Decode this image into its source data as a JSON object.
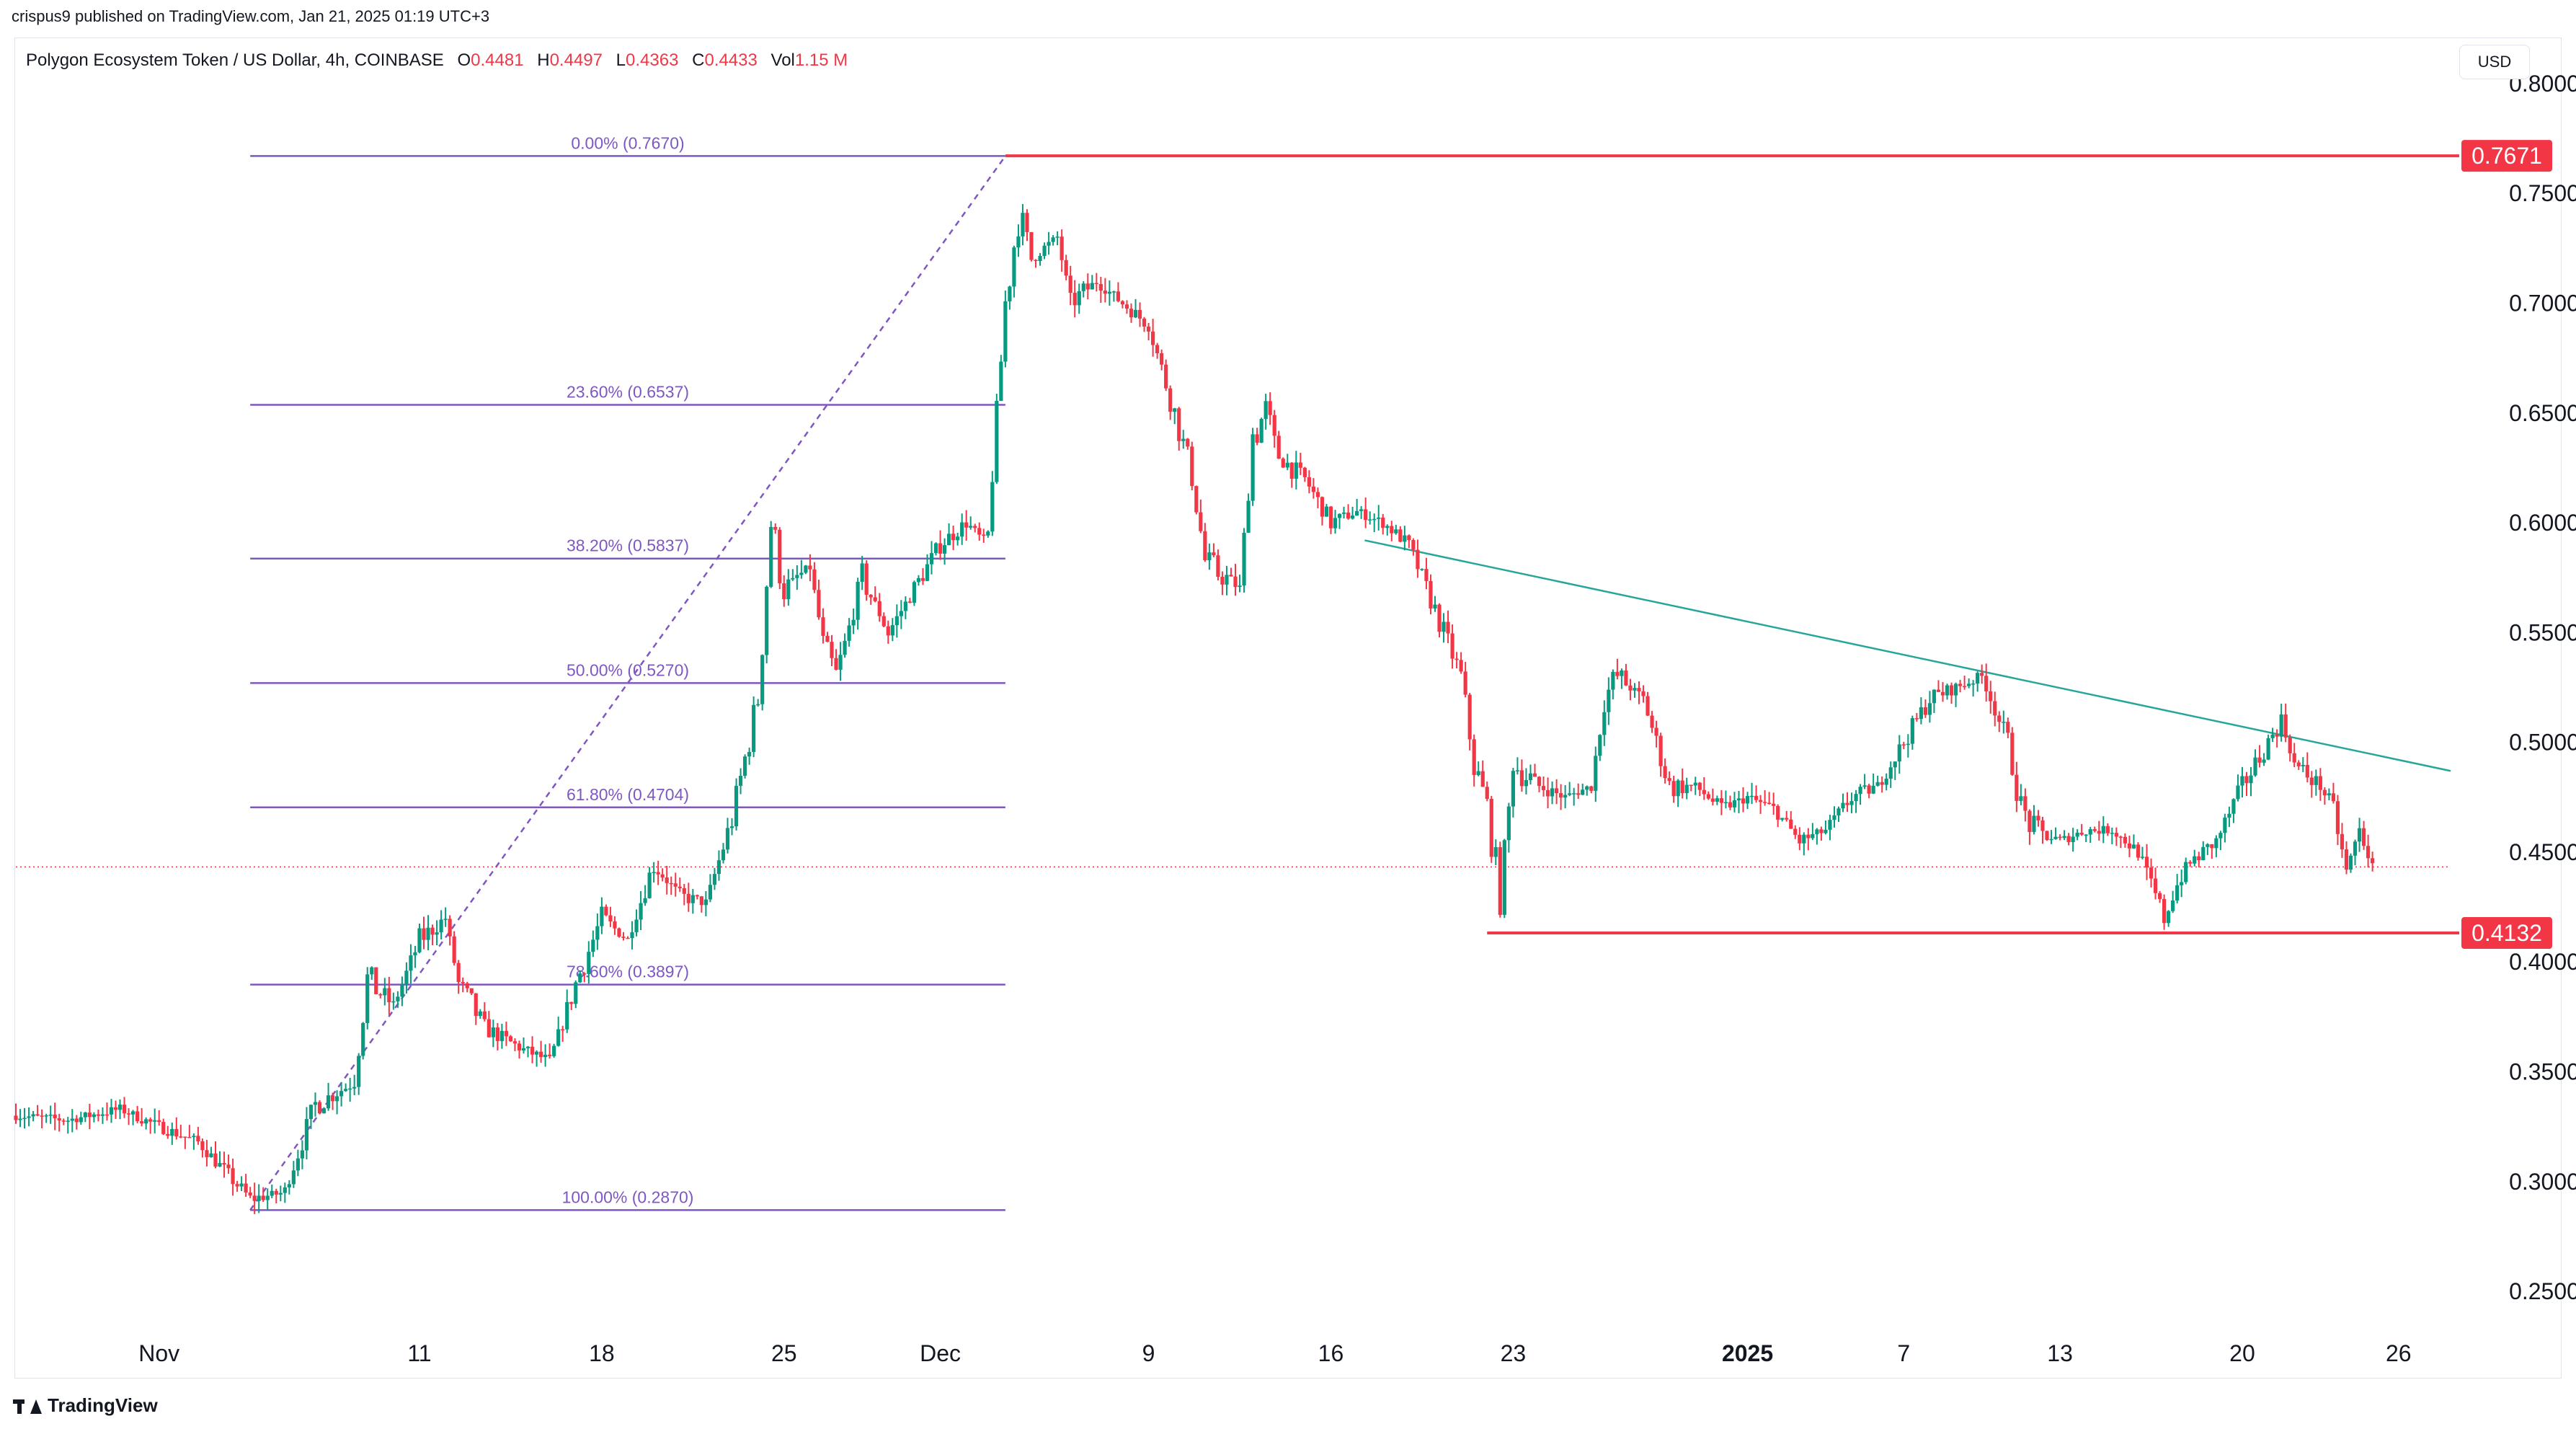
{
  "publish_line": "crispus9 published on TradingView.com, Jan 21, 2025 01:19 UTC+3",
  "legend": {
    "symbol": "Polygon Ecosystem Token / US Dollar, 4h, COINBASE",
    "open_label": "O",
    "open": "0.4481",
    "high_label": "H",
    "high": "0.4497",
    "low_label": "L",
    "low": "0.4363",
    "close_label": "C",
    "close": "0.4433",
    "vol_label": "Vol",
    "vol": "1.15 M"
  },
  "brand": "TradingView",
  "colors": {
    "up": "#089981",
    "down": "#f23645",
    "fib": "#7e57c2",
    "level": "#f23645",
    "trend": "#26a69a"
  },
  "chart_data": {
    "type": "candlestick",
    "unit": "USD",
    "ylim": [
      0.23,
      0.82
    ],
    "y_ticks": [
      "0.8000",
      "0.7500",
      "0.7000",
      "0.6500",
      "0.6000",
      "0.5500",
      "0.5000",
      "0.4500",
      "0.4000",
      "0.3500",
      "0.3000",
      "0.2500"
    ],
    "x_ticks": [
      {
        "label": "Nov",
        "day": 0
      },
      {
        "label": "11",
        "day": 10
      },
      {
        "label": "18",
        "day": 17
      },
      {
        "label": "25",
        "day": 24
      },
      {
        "label": "Dec",
        "day": 30
      },
      {
        "label": "9",
        "day": 38
      },
      {
        "label": "16",
        "day": 45
      },
      {
        "label": "23",
        "day": 52
      },
      {
        "label": "2025",
        "day": 61,
        "bold": true
      },
      {
        "label": "7",
        "day": 67
      },
      {
        "label": "13",
        "day": 73
      },
      {
        "label": "20",
        "day": 80
      },
      {
        "label": "26",
        "day": 86
      }
    ],
    "x_range_days": [
      -5.5,
      88
    ],
    "path": [
      [
        -5.5,
        0.33
      ],
      [
        -3.5,
        0.328
      ],
      [
        -1.5,
        0.333
      ],
      [
        0,
        0.325
      ],
      [
        1.5,
        0.318
      ],
      [
        2.5,
        0.305
      ],
      [
        3.5,
        0.292
      ],
      [
        4.8,
        0.295
      ],
      [
        6,
        0.335
      ],
      [
        7.5,
        0.345
      ],
      [
        8,
        0.392
      ],
      [
        9,
        0.38
      ],
      [
        10,
        0.41
      ],
      [
        11,
        0.42
      ],
      [
        11.5,
        0.39
      ],
      [
        12.5,
        0.37
      ],
      [
        14,
        0.36
      ],
      [
        15,
        0.355
      ],
      [
        16,
        0.39
      ],
      [
        17,
        0.42
      ],
      [
        18,
        0.41
      ],
      [
        19,
        0.445
      ],
      [
        20,
        0.43
      ],
      [
        21,
        0.427
      ],
      [
        22,
        0.465
      ],
      [
        23,
        0.52
      ],
      [
        23.5,
        0.6
      ],
      [
        24,
        0.57
      ],
      [
        25,
        0.58
      ],
      [
        25.5,
        0.545
      ],
      [
        26,
        0.53
      ],
      [
        27,
        0.575
      ],
      [
        28,
        0.55
      ],
      [
        29,
        0.57
      ],
      [
        30,
        0.59
      ],
      [
        31,
        0.6
      ],
      [
        31.8,
        0.59
      ],
      [
        32.5,
        0.7
      ],
      [
        33,
        0.74
      ],
      [
        33.5,
        0.72
      ],
      [
        34.5,
        0.73
      ],
      [
        35,
        0.7
      ],
      [
        36,
        0.71
      ],
      [
        37,
        0.7
      ],
      [
        38,
        0.69
      ],
      [
        39,
        0.65
      ],
      [
        39.7,
        0.62
      ],
      [
        40.2,
        0.58
      ],
      [
        41,
        0.575
      ],
      [
        41.5,
        0.57
      ],
      [
        42,
        0.64
      ],
      [
        42.5,
        0.65
      ],
      [
        43,
        0.63
      ],
      [
        44,
        0.62
      ],
      [
        45,
        0.6
      ],
      [
        46,
        0.605
      ],
      [
        47,
        0.6
      ],
      [
        48,
        0.59
      ],
      [
        49,
        0.56
      ],
      [
        50,
        0.53
      ],
      [
        50.5,
        0.49
      ],
      [
        51,
        0.47
      ],
      [
        51.5,
        0.43
      ],
      [
        52,
        0.49
      ],
      [
        53,
        0.48
      ],
      [
        54,
        0.475
      ],
      [
        55,
        0.48
      ],
      [
        55.5,
        0.52
      ],
      [
        56,
        0.53
      ],
      [
        57,
        0.52
      ],
      [
        58,
        0.48
      ],
      [
        59,
        0.48
      ],
      [
        60,
        0.47
      ],
      [
        61,
        0.475
      ],
      [
        62,
        0.47
      ],
      [
        63,
        0.455
      ],
      [
        64,
        0.46
      ],
      [
        65,
        0.475
      ],
      [
        66,
        0.48
      ],
      [
        67,
        0.5
      ],
      [
        68,
        0.52
      ],
      [
        69,
        0.525
      ],
      [
        70,
        0.53
      ],
      [
        71,
        0.5
      ],
      [
        71.5,
        0.47
      ],
      [
        72,
        0.46
      ],
      [
        73,
        0.455
      ],
      [
        74,
        0.46
      ],
      [
        75,
        0.46
      ],
      [
        76,
        0.45
      ],
      [
        77,
        0.42
      ],
      [
        77.5,
        0.435
      ],
      [
        78,
        0.445
      ],
      [
        79,
        0.455
      ],
      [
        80,
        0.48
      ],
      [
        81,
        0.5
      ],
      [
        81.5,
        0.51
      ],
      [
        82,
        0.49
      ],
      [
        83,
        0.48
      ],
      [
        83.5,
        0.47
      ],
      [
        84,
        0.44
      ],
      [
        84.5,
        0.46
      ],
      [
        85,
        0.443
      ]
    ],
    "fibonacci": {
      "x_start_day": 3.5,
      "x_end_day": 32.5,
      "levels": [
        {
          "label": "0.00% (0.7670)",
          "value": 0.767
        },
        {
          "label": "23.60% (0.6537)",
          "value": 0.6537
        },
        {
          "label": "38.20% (0.5837)",
          "value": 0.5837
        },
        {
          "label": "50.00% (0.5270)",
          "value": 0.527
        },
        {
          "label": "61.80% (0.4704)",
          "value": 0.4704
        },
        {
          "label": "78.60% (0.3897)",
          "value": 0.3897
        },
        {
          "label": "100.00% (0.2870)",
          "value": 0.287
        }
      ]
    },
    "fib_diagonal": {
      "from": [
        3.5,
        0.287
      ],
      "to": [
        32.5,
        0.767
      ]
    },
    "resistance": {
      "value": 0.7671,
      "label": "0.7671",
      "from_day": 32.5
    },
    "support": {
      "value": 0.4132,
      "label": "0.4132",
      "from_day": 51
    },
    "trendline": {
      "from": [
        46.3,
        0.592
      ],
      "to": [
        88,
        0.487
      ]
    },
    "last_price": 0.4433
  }
}
